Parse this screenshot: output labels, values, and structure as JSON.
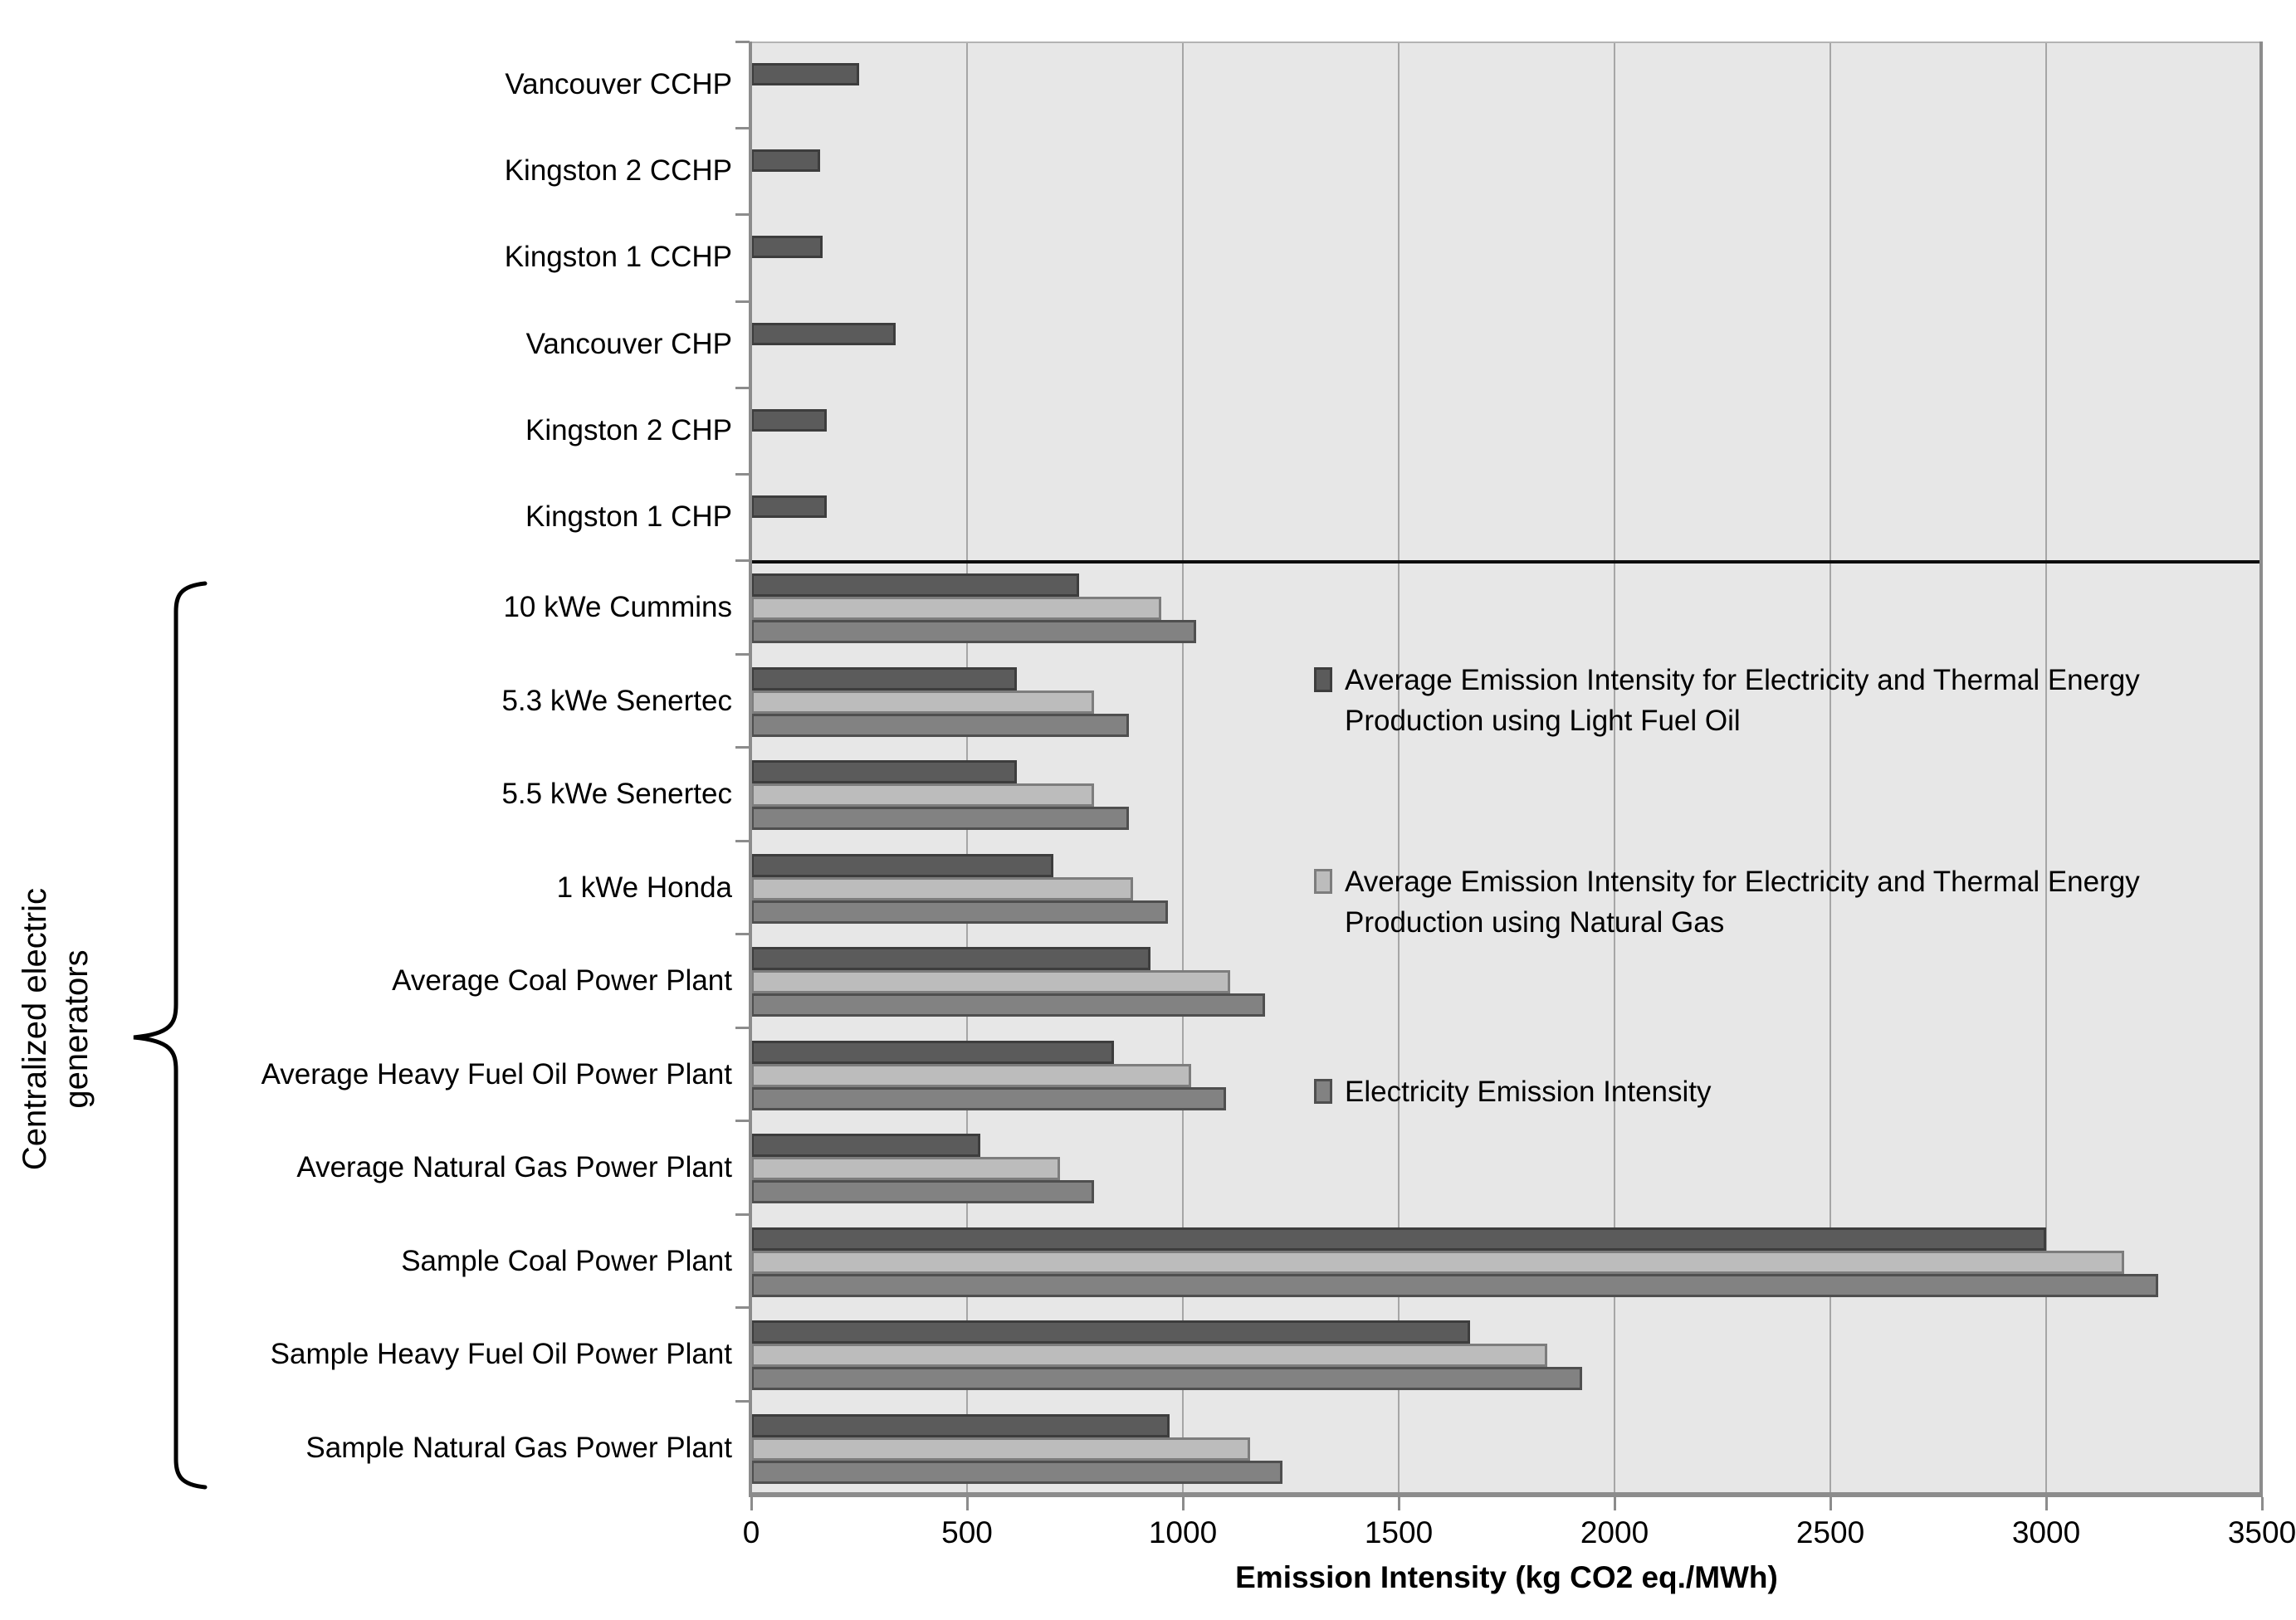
{
  "axis": {
    "x_title": "Emission Intensity (kg CO2 eq./MWh)"
  },
  "group_brace": {
    "label": "Centralized electric\ngenerators"
  },
  "legend": [
    {
      "text": "Average Emission Intensity for Electricity and Thermal Energy\nProduction using Light Fuel Oil",
      "color": "#5b5b5b",
      "border": "#3d3d3d"
    },
    {
      "text": "Average Emission Intensity for Electricity and Thermal Energy\nProduction using Natural Gas",
      "color": "#bcbcbc",
      "border": "#7d7d7d"
    },
    {
      "text": "Electricity Emission Intensity",
      "color": "#828282",
      "border": "#4f4f4f"
    }
  ],
  "chart_data": {
    "type": "bar",
    "orientation": "horizontal",
    "title": "",
    "xlabel": "Emission Intensity (kg CO2 eq./MWh)",
    "ylabel": "",
    "xlim": [
      0,
      3500
    ],
    "x_ticks": [
      0,
      500,
      1000,
      1500,
      2000,
      2500,
      3000,
      3500
    ],
    "grid": true,
    "plot_background": "#e7e7e7",
    "gridline_color": "#a6a6a6",
    "axis_color": "#8c8c8c",
    "divider_color": "#0d0d0d",
    "legend_position": "inside-right",
    "series": [
      {
        "name": "Average Emission Intensity for Electricity and Thermal Energy Production using Light Fuel Oil",
        "color": "#5b5b5b",
        "border": "#3d3d3d"
      },
      {
        "name": "Average Emission Intensity for Electricity and Thermal Energy Production using Natural Gas",
        "color": "#bcbcbc",
        "border": "#7d7d7d"
      },
      {
        "name": "Electricity Emission Intensity",
        "color": "#828282",
        "border": "#4f4f4f"
      }
    ],
    "categories": [
      "Vancouver CCHP",
      "Kingston 2 CCHP",
      "Kingston 1 CCHP",
      "Vancouver CHP",
      "Kingston 2 CHP",
      "Kingston 1 CHP",
      "10 kWe Cummins",
      "5.3 kWe Senertec",
      "5.5 kWe Senertec",
      "1 kWe Honda",
      "Average Coal Power Plant",
      "Average Heavy Fuel Oil Power Plant",
      "Average Natural Gas Power Plant",
      "Sample Coal Power Plant",
      "Sample Heavy Fuel Oil Power Plant",
      "Sample Natural Gas Power Plant"
    ],
    "values": [
      [
        250,
        null,
        null
      ],
      [
        160,
        null,
        null
      ],
      [
        165,
        null,
        null
      ],
      [
        335,
        null,
        null
      ],
      [
        175,
        null,
        null
      ],
      [
        175,
        null,
        null
      ],
      [
        760,
        950,
        1030
      ],
      [
        615,
        795,
        875
      ],
      [
        615,
        795,
        875
      ],
      [
        700,
        885,
        965
      ],
      [
        925,
        1110,
        1190
      ],
      [
        840,
        1020,
        1100
      ],
      [
        530,
        715,
        795
      ],
      [
        3000,
        3180,
        3260
      ],
      [
        1665,
        1845,
        1925
      ],
      [
        970,
        1155,
        1230
      ]
    ],
    "sections": {
      "top_single_bar_rows": 6,
      "bottom_grouped_rows": 10,
      "divider_after_category": "Kingston 1 CHP",
      "brace_label": "Centralized electric\ngenerators"
    }
  }
}
